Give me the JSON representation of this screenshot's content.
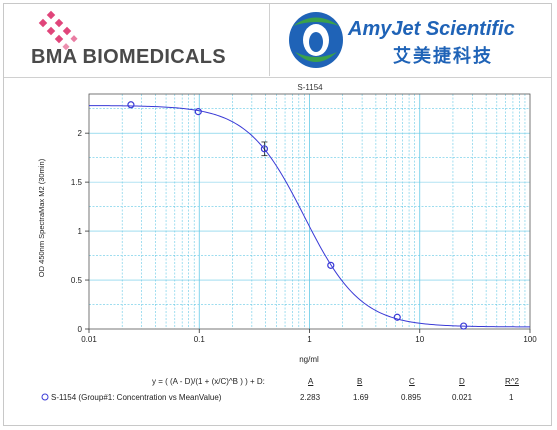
{
  "header": {
    "left_logo_text": "BMA BIOMEDICALS",
    "right_logo_text_en": "AmyJet Scientific",
    "right_logo_text_cn": "艾美捷科技"
  },
  "colors": {
    "curve": "#3a3ad6",
    "grid": "#66c9e6",
    "logo_pink": "#e0457a",
    "logo_blue": "#1f63b7",
    "logo_green": "#3aa14a"
  },
  "chart_data": {
    "type": "scatter",
    "title": "S-1154",
    "xlabel": "ng/ml",
    "ylabel": "OD 450nm SpectraMax M2 (30min)",
    "x_scale": "log",
    "xlim": [
      0.01,
      100
    ],
    "ylim": [
      0,
      2.4
    ],
    "x_tick_labels": [
      "0.01",
      "0.1",
      "1",
      "10",
      "100"
    ],
    "y_tick_labels": [
      "0",
      "0.5",
      "1",
      "1.5",
      "2"
    ],
    "y_ticks": [
      0,
      0.5,
      1,
      1.5,
      2
    ],
    "grid": true,
    "series": [
      {
        "name": "S-1154 (Group#1: Concentration vs MeanValue)",
        "x": [
          0.024,
          0.098,
          0.39,
          1.56,
          6.25,
          25
        ],
        "y": [
          2.29,
          2.22,
          1.84,
          0.65,
          0.12,
          0.03
        ],
        "error": [
          0,
          0,
          0.07,
          0,
          0,
          0
        ]
      }
    ],
    "fit": {
      "equation": "y = ( (A - D)/(1 + (x/C)^B ) ) + D:",
      "headers": [
        "A",
        "B",
        "C",
        "D",
        "R^2"
      ],
      "values": [
        "2.283",
        "1.69",
        "0.895",
        "0.021",
        "1"
      ],
      "A": 2.283,
      "B": 1.69,
      "C": 0.895,
      "D": 0.021
    }
  }
}
